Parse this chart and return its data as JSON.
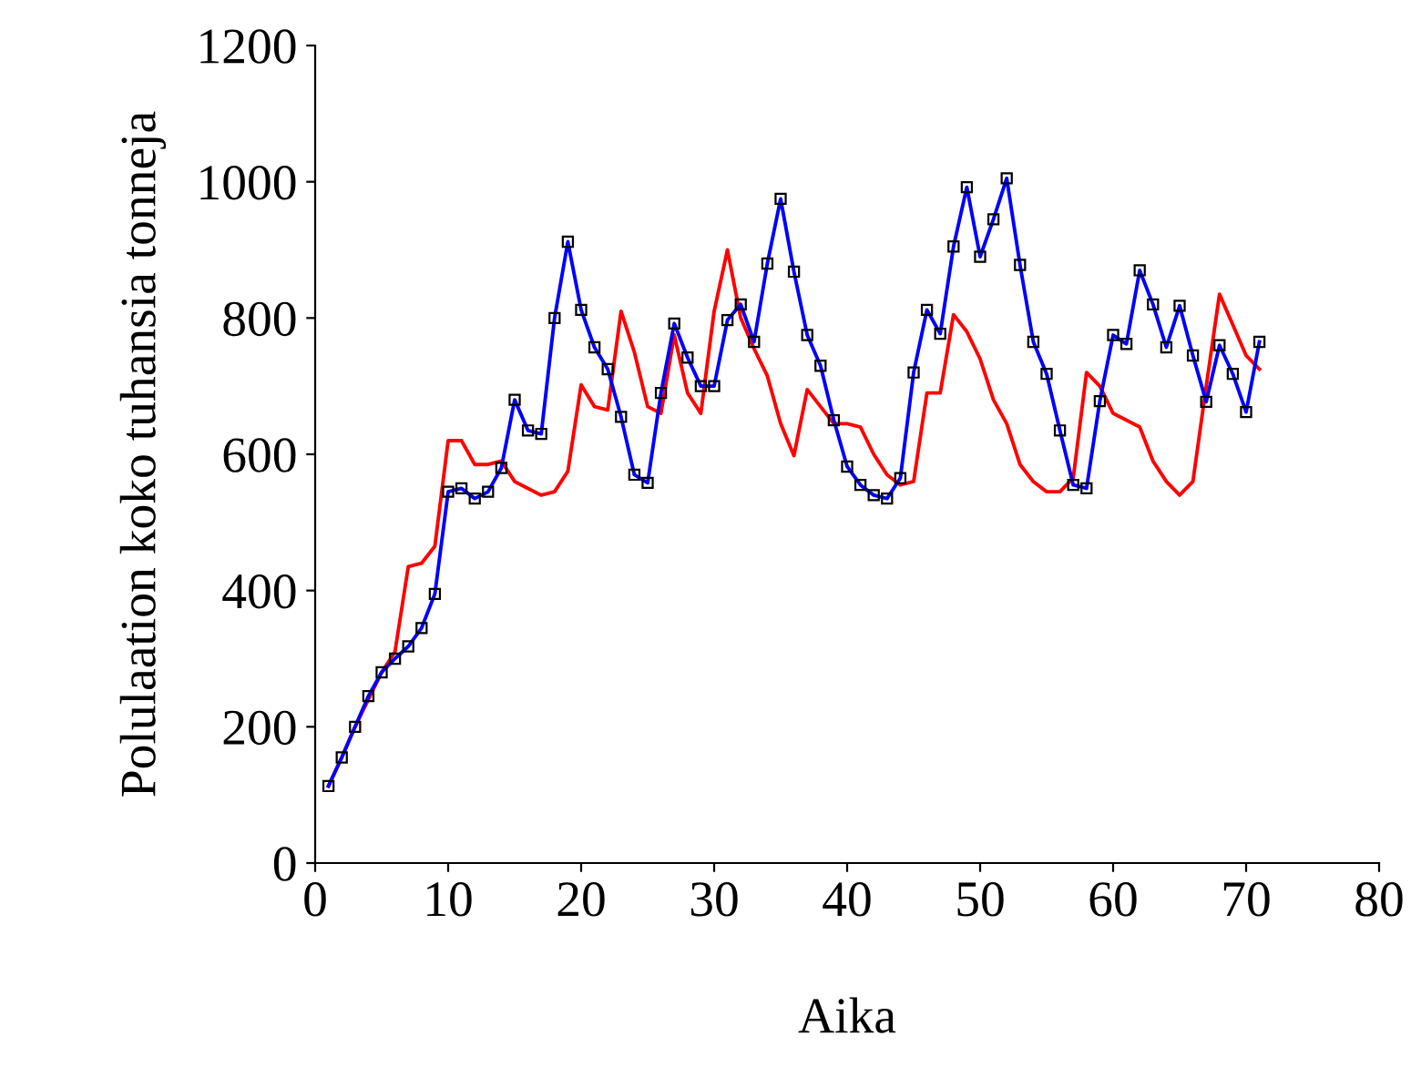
{
  "chart_data": {
    "type": "line",
    "xlabel": "Aika",
    "ylabel": "Polulaation koko tuhansia tonneja",
    "xlim": [
      0,
      80
    ],
    "xticks": [
      0,
      10,
      20,
      30,
      40,
      50,
      60,
      70,
      80
    ],
    "ylim": [
      0,
      1200
    ],
    "yticks": [
      0,
      200,
      400,
      600,
      800,
      1000,
      1200
    ],
    "grid": false,
    "legend": false,
    "series": [
      {
        "color": "#ff0000",
        "marker": "none",
        "x": [
          1,
          2,
          3,
          4,
          5,
          6,
          7,
          8,
          9,
          10,
          11,
          12,
          13,
          14,
          15,
          16,
          17,
          18,
          19,
          20,
          21,
          22,
          23,
          24,
          25,
          26,
          27,
          28,
          29,
          30,
          31,
          32,
          33,
          34,
          35,
          36,
          37,
          38,
          39,
          40,
          41,
          42,
          43,
          44,
          45,
          46,
          47,
          48,
          49,
          50,
          51,
          52,
          53,
          54,
          55,
          56,
          57,
          58,
          59,
          60,
          61,
          62,
          63,
          64,
          65,
          66,
          67,
          68,
          69,
          70,
          71
        ],
        "values": [
          113,
          155,
          200,
          240,
          280,
          310,
          435,
          440,
          465,
          620,
          620,
          585,
          585,
          590,
          560,
          550,
          540,
          545,
          575,
          702,
          670,
          665,
          810,
          750,
          670,
          660,
          775,
          690,
          660,
          810,
          900,
          800,
          755,
          715,
          645,
          598,
          695,
          670,
          645,
          645,
          640,
          600,
          570,
          555,
          560,
          690,
          690,
          805,
          780,
          740,
          680,
          645,
          585,
          560,
          545,
          545,
          565,
          720,
          700,
          660,
          650,
          640,
          590,
          560,
          540,
          560,
          700,
          835,
          790,
          745,
          725
        ]
      },
      {
        "color": "#0000ff",
        "marker": "square",
        "x": [
          1,
          2,
          3,
          4,
          5,
          6,
          7,
          8,
          9,
          10,
          11,
          12,
          13,
          14,
          15,
          16,
          17,
          18,
          19,
          20,
          21,
          22,
          23,
          24,
          25,
          26,
          27,
          28,
          29,
          30,
          31,
          32,
          33,
          34,
          35,
          36,
          37,
          38,
          39,
          40,
          41,
          42,
          43,
          44,
          45,
          46,
          47,
          48,
          49,
          50,
          51,
          52,
          53,
          54,
          55,
          56,
          57,
          58,
          59,
          60,
          61,
          62,
          63,
          64,
          65,
          66,
          67,
          68,
          69,
          70,
          71
        ],
        "values": [
          113,
          155,
          200,
          245,
          280,
          300,
          318,
          345,
          395,
          545,
          550,
          535,
          545,
          580,
          680,
          635,
          630,
          800,
          912,
          812,
          757,
          725,
          655,
          570,
          558,
          690,
          792,
          742,
          700,
          700,
          797,
          820,
          765,
          880,
          975,
          868,
          775,
          730,
          650,
          582,
          555,
          540,
          535,
          565,
          720,
          812,
          777,
          905,
          992,
          890,
          945,
          1005,
          878,
          765,
          718,
          635,
          555,
          550,
          678,
          775,
          762,
          870,
          820,
          757,
          818,
          745,
          677,
          760,
          718,
          662,
          765
        ]
      }
    ]
  }
}
